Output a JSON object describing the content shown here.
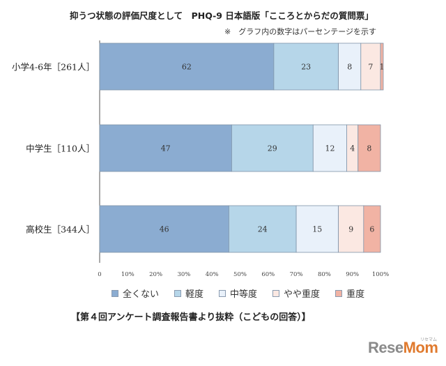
{
  "chart_data": {
    "type": "bar",
    "orientation": "horizontal",
    "stacked": true,
    "title": "抑うつ状態の評価尺度として　PHQ-9 日本語版「こころとからだの質問票」",
    "note": "※　グラフ内の数字はパーセンテージを示す",
    "categories": [
      "小学4-6年［261人］",
      "中学生［110人］",
      "高校生［344人］"
    ],
    "series": [
      {
        "name": "全くない",
        "values": [
          62,
          47,
          46
        ],
        "color": "#8bacd1"
      },
      {
        "name": "軽度",
        "values": [
          23,
          29,
          24
        ],
        "color": "#b6d6e9"
      },
      {
        "name": "中等度",
        "values": [
          8,
          12,
          15
        ],
        "color": "#e9f1fa"
      },
      {
        "name": "やや重度",
        "values": [
          7,
          4,
          9
        ],
        "color": "#fbe8e2"
      },
      {
        "name": "重度",
        "values": [
          1,
          8,
          6
        ],
        "color": "#f1b3a4"
      }
    ],
    "xlim": [
      0,
      100
    ],
    "xticks": [
      "0",
      "10%",
      "20%",
      "30%",
      "40%",
      "50%",
      "60%",
      "70%",
      "80%",
      "90%",
      "100%"
    ],
    "legend_position": "bottom",
    "grid": false
  },
  "source_text": "【第４回アンケート調査報告書より抜粋（こどもの回答）】",
  "watermark": {
    "brand_a": "Rese",
    "brand_b": "Mom",
    "sub": "リセマム"
  }
}
